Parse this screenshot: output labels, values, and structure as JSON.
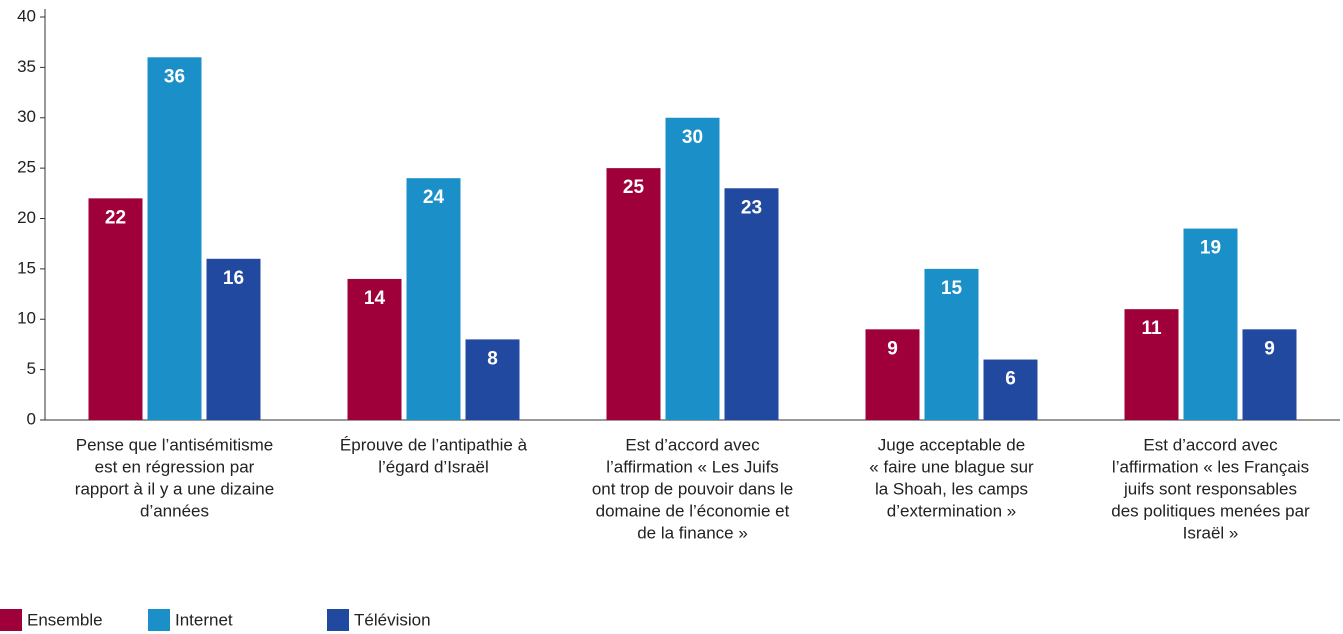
{
  "chart_data": {
    "type": "bar",
    "categories": [
      [
        "Pense que l’antisémitisme",
        "est en régression par",
        "rapport à il y a une dizaine",
        "d’années"
      ],
      [
        "Éprouve de l’antipathie à",
        "l’égard d’Israël"
      ],
      [
        "Est d’accord avec",
        "l’affirmation « Les Juifs",
        "ont trop de pouvoir dans le",
        "domaine de l’économie et",
        "de la finance »"
      ],
      [
        "Juge acceptable de",
        "« faire une blague sur",
        "la Shoah, les camps",
        "d’extermination »"
      ],
      [
        "Est d’accord avec",
        "l’affirmation « les Français",
        "juifs sont responsables",
        "des politiques menées par",
        "Israël »"
      ]
    ],
    "series": [
      {
        "name": "Ensemble",
        "color": "#a0003a",
        "values": [
          22,
          14,
          25,
          9,
          11
        ]
      },
      {
        "name": "Internet",
        "color": "#1a8fc8",
        "values": [
          36,
          24,
          30,
          15,
          19
        ]
      },
      {
        "name": "Télévision",
        "color": "#2249a0",
        "values": [
          16,
          8,
          23,
          6,
          9
        ]
      }
    ],
    "ylim": [
      0,
      40
    ],
    "yticks": [
      0,
      5,
      10,
      15,
      20,
      25,
      30,
      35,
      40
    ],
    "legend": "bottom-left"
  }
}
